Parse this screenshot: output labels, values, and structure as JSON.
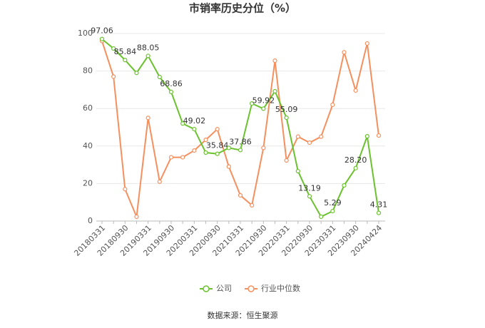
{
  "chart_data": {
    "type": "line",
    "title": "市销率历史分位（%）",
    "categories": [
      "20180331",
      null,
      "20180930",
      null,
      "20190331",
      null,
      "20190930",
      null,
      "20200331",
      null,
      "20200930",
      null,
      "20210331",
      null,
      "20210930",
      null,
      "20220331",
      null,
      "20220930",
      null,
      "20230331",
      null,
      "20230930",
      null,
      "20240424"
    ],
    "series": [
      {
        "name": "公司",
        "color": "#6bc22e",
        "values": [
          97.06,
          92,
          85.84,
          79,
          88.05,
          76.8,
          68.86,
          52,
          49.02,
          36.5,
          35.84,
          39,
          37.86,
          62.7,
          59.92,
          69.2,
          55.09,
          26.6,
          13.19,
          2.3,
          5.29,
          19,
          28.2,
          45.2,
          4.31
        ],
        "value_labels": [
          "97.06",
          null,
          "85.84",
          null,
          "88.05",
          null,
          "68.86",
          null,
          "49.02",
          null,
          "35.84",
          null,
          "37.86",
          null,
          "59.92",
          null,
          "55.09",
          null,
          "13.19",
          null,
          "5.29",
          null,
          "28.20",
          null,
          "4.31"
        ]
      },
      {
        "name": "行业中位数",
        "color": "#f5905e",
        "values": [
          96,
          77,
          17,
          2.3,
          55,
          21,
          34,
          34,
          37.6,
          43.3,
          49,
          29,
          13.7,
          8.4,
          39,
          85.5,
          32.3,
          45,
          41.8,
          45,
          62,
          90,
          69.6,
          94.7,
          45.6
        ]
      }
    ],
    "ylim": [
      0,
      100
    ],
    "yticks": [
      0,
      20,
      40,
      60,
      80,
      100
    ],
    "grid": true,
    "source": "数据来源：恒生聚源"
  }
}
